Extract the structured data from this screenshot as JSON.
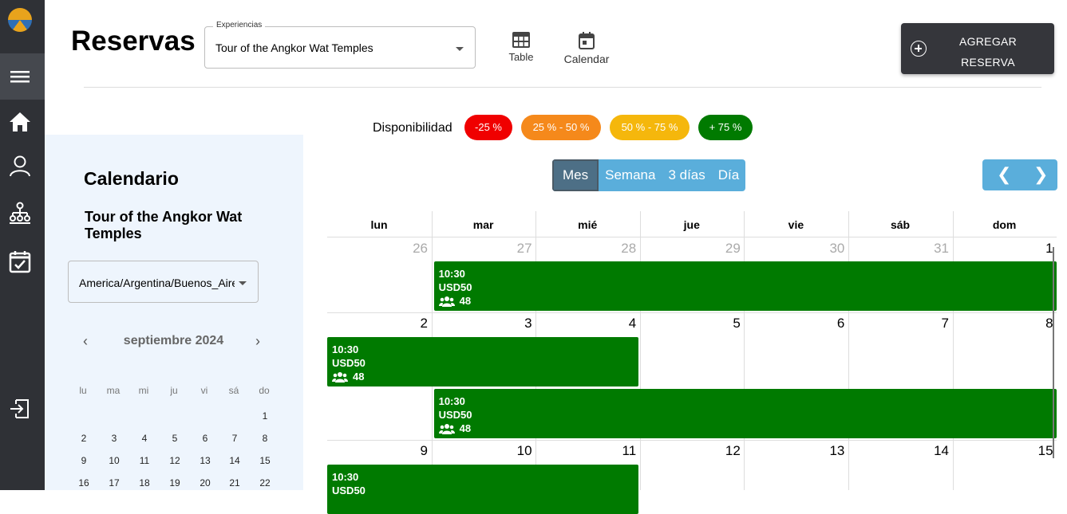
{
  "header": {
    "title": "Reservas",
    "experience_label": "Experiencias",
    "experience_value": "Tour of the Angkor Wat Temples",
    "view_table": "Table",
    "view_calendar": "Calendar",
    "add_line1": "AGREGAR",
    "add_line2": "RESERVA"
  },
  "availability": {
    "label": "Disponibilidad",
    "chips": [
      {
        "text": "-25 %",
        "color": "#f00000"
      },
      {
        "text": "25 % - 50 %",
        "color": "#f5891b"
      },
      {
        "text": "50 % - 75 %",
        "color": "#f5b70c"
      },
      {
        "text": "+ 75 %",
        "color": "#007a00"
      }
    ]
  },
  "left": {
    "title": "Calendario",
    "experience": "Tour of the Angkor Wat Temples",
    "timezone": "America/Argentina/Buenos_Aires",
    "month": "septiembre 2024",
    "dows": [
      "lu",
      "ma",
      "mi",
      "ju",
      "vi",
      "sá",
      "do"
    ],
    "weeks": [
      [
        "",
        "",
        "",
        "",
        "",
        "",
        "1"
      ],
      [
        "2",
        "3",
        "4",
        "5",
        "6",
        "7",
        "8"
      ],
      [
        "9",
        "10",
        "11",
        "12",
        "13",
        "14",
        "15"
      ],
      [
        "16",
        "17",
        "18",
        "19",
        "20",
        "21",
        "22"
      ]
    ]
  },
  "views": {
    "month": "Mes",
    "week": "Semana",
    "three_days": "3 días",
    "day": "Día"
  },
  "calendar": {
    "dows": [
      "lun",
      "mar",
      "mié",
      "jue",
      "vie",
      "sáb",
      "dom"
    ],
    "weeks": [
      [
        "26",
        "27",
        "28",
        "29",
        "30",
        "31",
        "1"
      ],
      [
        "2",
        "3",
        "4",
        "5",
        "6",
        "7",
        "8"
      ],
      [
        "9",
        "10",
        "11",
        "12",
        "13",
        "14",
        "15"
      ]
    ],
    "event_color": "#007a00",
    "events": [
      {
        "time": "10:30",
        "price": "USD50",
        "capacity": "48"
      },
      {
        "time": "10:30",
        "price": "USD50",
        "capacity": "48"
      },
      {
        "time": "10:30",
        "price": "USD50",
        "capacity": "48"
      },
      {
        "time": "10:30",
        "price": "USD50"
      }
    ]
  }
}
